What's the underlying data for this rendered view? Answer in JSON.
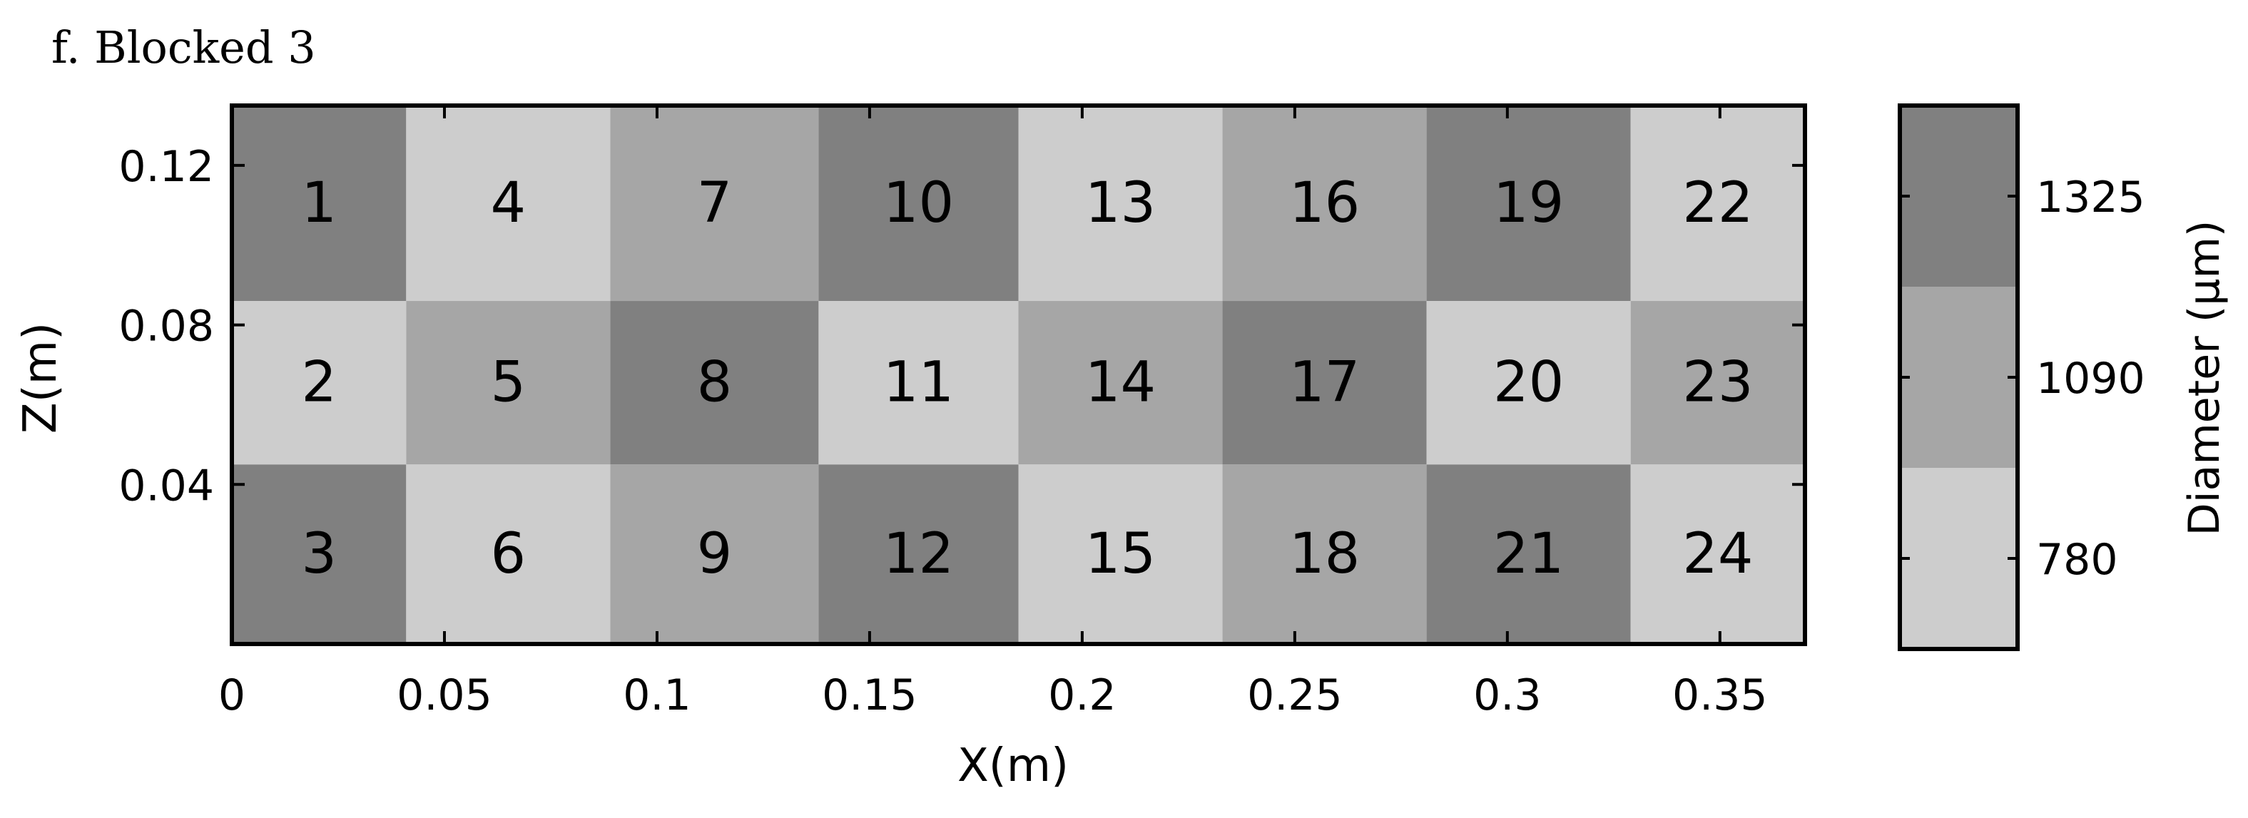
{
  "panel_label": "f. Blocked 3",
  "colorbar": {
    "label": "Diameter (μm)",
    "levels": [
      {
        "value": "1325",
        "color": "#808080"
      },
      {
        "value": "1090",
        "color": "#a6a6a6"
      },
      {
        "value": "780",
        "color": "#cdcdcd"
      }
    ]
  },
  "chart_data": {
    "type": "heatmap",
    "title": "f. Blocked 3",
    "xlabel": "X(m)",
    "ylabel": "Z(m)",
    "xlim": [
      0,
      0.37
    ],
    "ylim": [
      0,
      0.135
    ],
    "xticks": [
      "0",
      "0.05",
      "0.1",
      "0.15",
      "0.2",
      "0.25",
      "0.3",
      "0.35"
    ],
    "xtick_values": [
      0,
      0.05,
      0.1,
      0.15,
      0.2,
      0.25,
      0.3,
      0.35
    ],
    "yticks": [
      "0.12",
      "0.08",
      "0.04"
    ],
    "ytick_values": [
      0.12,
      0.08,
      0.04
    ],
    "column_edges": [
      0,
      0.041,
      0.089,
      0.138,
      0.185,
      0.233,
      0.281,
      0.329,
      0.37
    ],
    "row_edges": [
      0.135,
      0.086,
      0.045,
      0
    ],
    "cells": [
      {
        "label": "1",
        "col": 0,
        "row": 0,
        "diameter": 1325
      },
      {
        "label": "2",
        "col": 0,
        "row": 1,
        "diameter": 780
      },
      {
        "label": "3",
        "col": 0,
        "row": 2,
        "diameter": 1325
      },
      {
        "label": "4",
        "col": 1,
        "row": 0,
        "diameter": 780
      },
      {
        "label": "5",
        "col": 1,
        "row": 1,
        "diameter": 1090
      },
      {
        "label": "6",
        "col": 1,
        "row": 2,
        "diameter": 780
      },
      {
        "label": "7",
        "col": 2,
        "row": 0,
        "diameter": 1090
      },
      {
        "label": "8",
        "col": 2,
        "row": 1,
        "diameter": 1325
      },
      {
        "label": "9",
        "col": 2,
        "row": 2,
        "diameter": 1090
      },
      {
        "label": "10",
        "col": 3,
        "row": 0,
        "diameter": 1325
      },
      {
        "label": "11",
        "col": 3,
        "row": 1,
        "diameter": 780
      },
      {
        "label": "12",
        "col": 3,
        "row": 2,
        "diameter": 1325
      },
      {
        "label": "13",
        "col": 4,
        "row": 0,
        "diameter": 780
      },
      {
        "label": "14",
        "col": 4,
        "row": 1,
        "diameter": 1090
      },
      {
        "label": "15",
        "col": 4,
        "row": 2,
        "diameter": 780
      },
      {
        "label": "16",
        "col": 5,
        "row": 0,
        "diameter": 1090
      },
      {
        "label": "17",
        "col": 5,
        "row": 1,
        "diameter": 1325
      },
      {
        "label": "18",
        "col": 5,
        "row": 2,
        "diameter": 1090
      },
      {
        "label": "19",
        "col": 6,
        "row": 0,
        "diameter": 1325
      },
      {
        "label": "20",
        "col": 6,
        "row": 1,
        "diameter": 780
      },
      {
        "label": "21",
        "col": 6,
        "row": 2,
        "diameter": 1325
      },
      {
        "label": "22",
        "col": 7,
        "row": 0,
        "diameter": 780
      },
      {
        "label": "23",
        "col": 7,
        "row": 1,
        "diameter": 1090
      },
      {
        "label": "24",
        "col": 7,
        "row": 2,
        "diameter": 780
      }
    ]
  }
}
